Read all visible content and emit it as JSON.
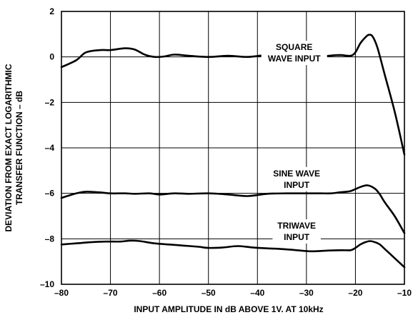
{
  "chart_data": {
    "type": "line",
    "title": "",
    "xlabel": "INPUT AMPLITUDE IN dB ABOVE 1V. AT 10kHz",
    "ylabel_lines": [
      "DEVIATION FROM EXACT LOGARITHMIC",
      "TRANSFER FUNCTION – dB"
    ],
    "xlim": [
      -80,
      -10
    ],
    "ylim": [
      -10,
      2
    ],
    "x_ticks": [
      -80,
      -70,
      -60,
      -50,
      -40,
      -30,
      -20,
      -10
    ],
    "x_tick_labels": [
      "–80",
      "–70",
      "–60",
      "–50",
      "–40",
      "–30",
      "–20",
      "–10"
    ],
    "y_ticks": [
      -10,
      -8,
      -6,
      -4,
      -2,
      0,
      2
    ],
    "y_tick_labels": [
      "–10",
      "–8",
      "–6",
      "–4",
      "–2",
      "0",
      "2"
    ],
    "grid": true,
    "series": [
      {
        "name_lines": [
          "SQUARE",
          "WAVE INPUT"
        ],
        "label_at": [
          -32.5,
          0.3
        ],
        "x": [
          -80,
          -77,
          -75,
          -72,
          -70,
          -67,
          -65,
          -63,
          -61,
          -59,
          -57,
          -54,
          -50,
          -46,
          -42,
          -38,
          -34,
          -30,
          -27,
          -25,
          -23,
          -21,
          -20,
          -19,
          -18,
          -17.3,
          -16.5,
          -15.5,
          -14,
          -12,
          -10
        ],
        "y": [
          -0.45,
          -0.15,
          0.2,
          0.3,
          0.3,
          0.38,
          0.32,
          0.1,
          0.0,
          0.02,
          0.1,
          0.05,
          0.0,
          0.05,
          0.0,
          0.08,
          0.03,
          0.06,
          0.02,
          0.06,
          0.08,
          0.05,
          0.2,
          0.6,
          0.85,
          0.97,
          0.9,
          0.4,
          -0.8,
          -2.4,
          -4.3
        ]
      },
      {
        "name_lines": [
          "SINE WAVE",
          "INPUT"
        ],
        "label_at": [
          -32,
          -5.25
        ],
        "x": [
          -80,
          -77,
          -75,
          -72,
          -70,
          -67,
          -65,
          -62,
          -60,
          -57,
          -54,
          -50,
          -46,
          -42,
          -38,
          -34,
          -30,
          -27,
          -25,
          -23,
          -21,
          -19,
          -17.5,
          -16,
          -15,
          -14,
          -12,
          -10
        ],
        "y": [
          -6.2,
          -6.0,
          -5.93,
          -5.96,
          -6.0,
          -6.0,
          -6.02,
          -6.0,
          -6.05,
          -6.0,
          -6.02,
          -6.0,
          -6.05,
          -6.12,
          -6.02,
          -6.0,
          -6.0,
          -6.0,
          -6.0,
          -5.95,
          -5.9,
          -5.72,
          -5.65,
          -5.8,
          -6.05,
          -6.4,
          -7.0,
          -7.75
        ]
      },
      {
        "name_lines": [
          "TRIWAVE",
          "INPUT"
        ],
        "label_at": [
          -32,
          -7.55
        ],
        "x": [
          -80,
          -77,
          -74,
          -71,
          -68,
          -66,
          -64,
          -61,
          -58,
          -55,
          -52,
          -50,
          -47,
          -44,
          -41,
          -38,
          -35,
          -32,
          -29,
          -26,
          -23,
          -21,
          -20,
          -19,
          -18,
          -17,
          -16,
          -15,
          -14,
          -12,
          -10
        ],
        "y": [
          -8.25,
          -8.2,
          -8.15,
          -8.12,
          -8.12,
          -8.08,
          -8.1,
          -8.2,
          -8.25,
          -8.3,
          -8.35,
          -8.4,
          -8.38,
          -8.32,
          -8.38,
          -8.42,
          -8.45,
          -8.5,
          -8.55,
          -8.52,
          -8.5,
          -8.5,
          -8.4,
          -8.25,
          -8.15,
          -8.1,
          -8.15,
          -8.25,
          -8.45,
          -8.85,
          -9.25
        ]
      }
    ]
  }
}
